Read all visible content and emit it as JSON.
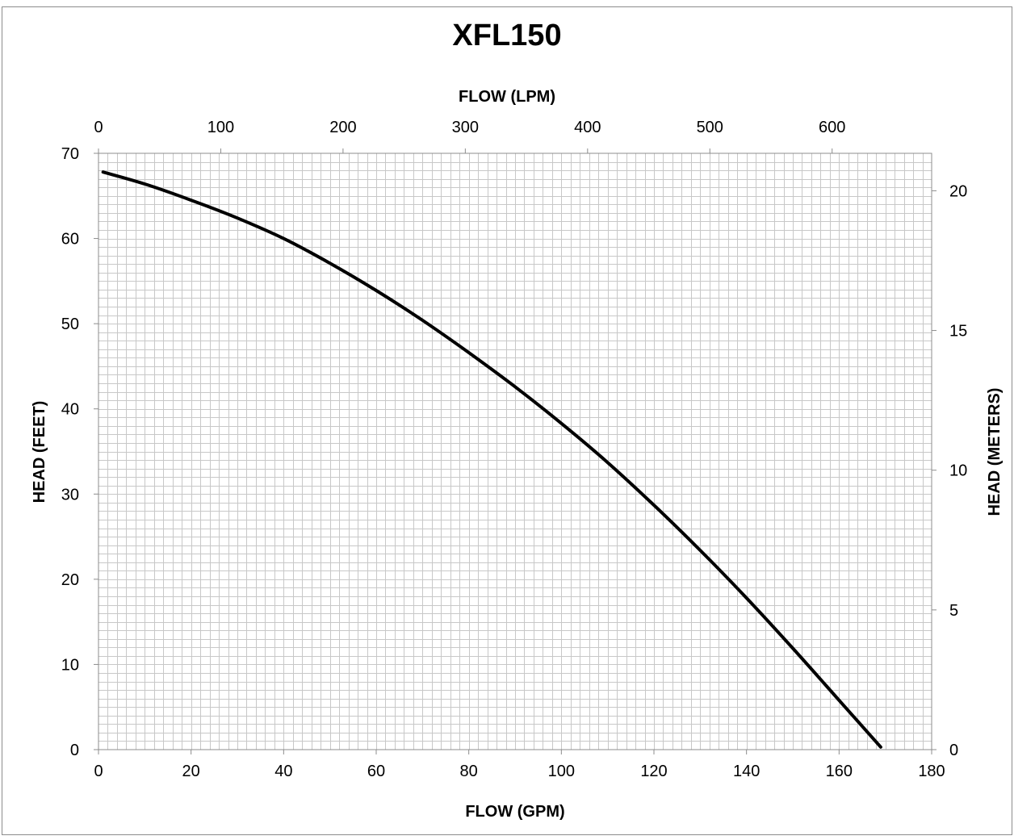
{
  "chart_data": {
    "type": "line",
    "title": "XFL150",
    "xlabel": "FLOW (GPM)",
    "x2label": "FLOW (LPM)",
    "ylabel": "HEAD (FEET)",
    "y2label": "HEAD (METERS)",
    "xlim": [
      0,
      180
    ],
    "ylim": [
      0,
      70
    ],
    "x2lim": [
      0,
      681.4
    ],
    "y2lim": [
      0,
      21.34
    ],
    "x_ticks": [
      "0",
      "20",
      "40",
      "60",
      "80",
      "100",
      "120",
      "140",
      "160",
      "180"
    ],
    "y_ticks": [
      "0",
      "10",
      "20",
      "30",
      "40",
      "50",
      "60",
      "70"
    ],
    "x2_ticks": [
      "0",
      "100",
      "200",
      "300",
      "400",
      "500",
      "600"
    ],
    "y2_ticks": [
      "0",
      "5",
      "10",
      "15",
      "20"
    ],
    "grid": true,
    "series": [
      {
        "color": "#000000",
        "x": [
          1,
          10,
          20,
          30,
          40,
          50,
          60,
          70,
          80,
          90,
          100,
          110,
          120,
          130,
          140,
          150,
          160,
          169
        ],
        "values": [
          67.8,
          66.4,
          64.5,
          62.4,
          60.0,
          57.1,
          53.9,
          50.4,
          46.6,
          42.6,
          38.3,
          33.7,
          28.7,
          23.4,
          17.8,
          11.9,
          5.8,
          0.3
        ]
      }
    ]
  }
}
